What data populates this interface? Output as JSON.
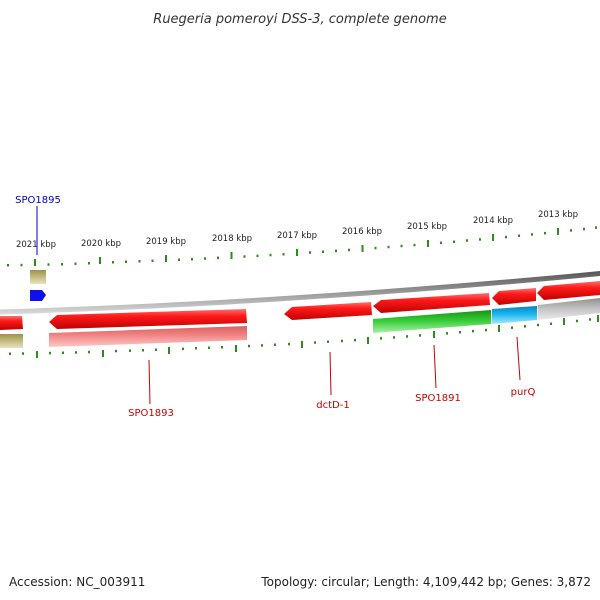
{
  "title": "Ruegeria pomeroyi DSS-3, complete genome",
  "footer": {
    "accession": "Accession: NC_003911",
    "summary": "Topology: circular; Length: 4,109,442 bp; Genes: 3,872"
  },
  "scale": {
    "ticks": [
      "2021 kbp",
      "2020 kbp",
      "2019 kbp",
      "2018 kbp",
      "2017 kbp",
      "2016 kbp",
      "2015 kbp",
      "2014 kbp",
      "2013 kbp"
    ]
  },
  "labels": [
    {
      "text": "SPO1895",
      "color": "#0000cc"
    },
    {
      "text": "SPO1893",
      "color": "#cc0000"
    },
    {
      "text": "dctD-1",
      "color": "#cc0000"
    },
    {
      "text": "SPO1891",
      "color": "#cc0000"
    },
    {
      "text": "purQ",
      "color": "#cc0000"
    }
  ],
  "colors": {
    "backbone": "#8c8c8c",
    "cds": "#ff1a1a",
    "ticks": "#2e8b1e",
    "olive": "#b8b070",
    "pink": "#f08080",
    "green": "#33cc33",
    "cyan": "#19b7ee",
    "grey": "#c8c8c8",
    "blue": "#1010ee"
  }
}
